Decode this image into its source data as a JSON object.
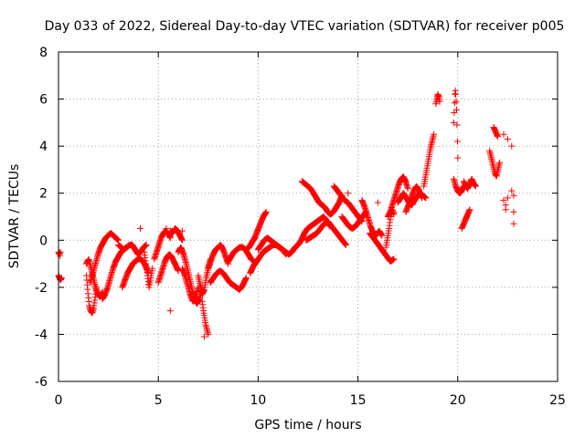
{
  "chart_data": {
    "type": "scatter",
    "title": "Day 033 of 2022, Sidereal Day-to-day VTEC variation (SDTVAR) for receiver p005",
    "xlabel": "GPS time / hours",
    "ylabel": "SDTVAR / TECUs",
    "xlim": [
      0,
      25
    ],
    "ylim": [
      -6,
      8
    ],
    "xticks": [
      0,
      5,
      10,
      15,
      20,
      25
    ],
    "yticks": [
      -6,
      -4,
      -2,
      0,
      2,
      4,
      6,
      8
    ],
    "xtick_labels": [
      "0",
      "5",
      "10",
      "15",
      "20",
      "25"
    ],
    "ytick_labels": [
      "-6",
      "-4",
      "-2",
      "0",
      "2",
      "4",
      "6",
      "8"
    ],
    "grid": true,
    "marker": "+",
    "color": "#ff0000",
    "series": [
      {
        "name": "SDTVAR",
        "segments": [
          {
            "t_start": 0.0,
            "t_end": 0.1,
            "y": [
              -0.5,
              -0.6,
              -0.5,
              -0.7,
              -0.5
            ]
          },
          {
            "t_start": 0.0,
            "t_end": 0.15,
            "y": [
              -1.5,
              -1.6,
              -1.7,
              -1.6
            ]
          },
          {
            "t_start": 1.4,
            "t_end": 1.9,
            "y": [
              -1.5,
              -2.2,
              -2.8,
              -3.0,
              -3.1,
              -2.9,
              -2.5,
              -2.0
            ]
          },
          {
            "t_start": 1.4,
            "t_end": 2.2,
            "y": [
              -1.0,
              -0.8,
              -1.2,
              -1.6,
              -2.0,
              -2.3,
              -2.4,
              -2.2
            ]
          },
          {
            "t_start": 1.6,
            "t_end": 3.0,
            "y": [
              -1.8,
              -1.4,
              -1.0,
              -0.6,
              -0.3,
              -0.1,
              0.1,
              0.2,
              0.3,
              0.2,
              0.1,
              0.0
            ]
          },
          {
            "t_start": 2.2,
            "t_end": 3.4,
            "y": [
              -2.5,
              -2.3,
              -2.0,
              -1.6,
              -1.2,
              -0.9,
              -0.7,
              -0.5,
              -0.4,
              -0.3
            ]
          },
          {
            "t_start": 3.0,
            "t_end": 4.4,
            "y": [
              -0.2,
              -0.3,
              -0.4,
              -0.3,
              -0.2,
              -0.2,
              -0.4,
              -0.6,
              -0.5,
              -0.3,
              -0.2
            ]
          },
          {
            "t_start": 3.2,
            "t_end": 4.5,
            "y": [
              -2.0,
              -1.7,
              -1.4,
              -1.2,
              -1.0,
              -0.9,
              -0.8,
              -0.8,
              -0.9,
              -1.1,
              -1.4
            ]
          },
          {
            "t_start": 4.3,
            "t_end": 4.7,
            "y": [
              -0.5,
              -1.0,
              -1.5,
              -2.0,
              -1.6,
              -1.2
            ]
          },
          {
            "t_start": 4.8,
            "t_end": 5.6,
            "y": [
              -0.8,
              -0.5,
              -0.2,
              0.1,
              0.3,
              0.4,
              0.3,
              0.1
            ]
          },
          {
            "t_start": 5.0,
            "t_end": 6.0,
            "y": [
              -1.8,
              -1.5,
              -1.2,
              -0.9,
              -0.7,
              -0.6,
              -0.7,
              -0.9,
              -1.1,
              -1.3
            ]
          },
          {
            "t_start": 5.6,
            "t_end": 6.2,
            "y": [
              0.4,
              0.3,
              0.5,
              0.4,
              0.2,
              0.0
            ]
          },
          {
            "t_start": 6.0,
            "t_end": 7.2,
            "y": [
              -0.5,
              -0.3,
              -0.6,
              -1.0,
              -1.5,
              -2.0,
              -2.5,
              -2.7,
              -2.5,
              -2.0
            ]
          },
          {
            "t_start": 6.2,
            "t_end": 7.0,
            "y": [
              -1.2,
              -1.5,
              -1.9,
              -2.3,
              -2.6,
              -2.4,
              -2.0
            ]
          },
          {
            "t_start": 7.0,
            "t_end": 7.6,
            "y": [
              -1.5,
              -1.9,
              -2.3,
              -2.1,
              -1.6,
              -1.2,
              -0.8
            ]
          },
          {
            "t_start": 7.2,
            "t_end": 7.5,
            "y": [
              -2.6,
              -3.0,
              -3.3,
              -3.6,
              -3.8,
              -4.0
            ]
          },
          {
            "t_start": 7.5,
            "t_end": 8.5,
            "y": [
              -1.2,
              -0.9,
              -0.6,
              -0.4,
              -0.3,
              -0.2,
              -0.4,
              -0.7,
              -1.0
            ]
          },
          {
            "t_start": 7.6,
            "t_end": 9.4,
            "y": [
              -1.8,
              -1.6,
              -1.4,
              -1.3,
              -1.4,
              -1.6,
              -1.8,
              -1.9,
              -2.0,
              -2.1,
              -1.9,
              -1.6
            ]
          },
          {
            "t_start": 8.5,
            "t_end": 9.8,
            "y": [
              -0.9,
              -0.7,
              -0.5,
              -0.4,
              -0.3,
              -0.3,
              -0.4,
              -0.6,
              -0.8,
              -0.9
            ]
          },
          {
            "t_start": 9.4,
            "t_end": 10.4,
            "y": [
              -0.4,
              -0.3,
              -0.1,
              0.1,
              0.4,
              0.7,
              1.0,
              1.2
            ]
          },
          {
            "t_start": 9.6,
            "t_end": 11.4,
            "y": [
              -1.4,
              -1.1,
              -0.9,
              -0.7,
              -0.5,
              -0.4,
              -0.3,
              -0.2,
              -0.2,
              -0.3,
              -0.4,
              -0.6
            ]
          },
          {
            "t_start": 10.0,
            "t_end": 12.0,
            "y": [
              -0.4,
              -0.2,
              0.0,
              0.1,
              0.0,
              -0.1,
              -0.2,
              -0.3,
              -0.4,
              -0.5,
              -0.6,
              -0.5,
              -0.3,
              -0.2
            ]
          },
          {
            "t_start": 12.0,
            "t_end": 13.6,
            "y": [
              -0.2,
              0.0,
              0.3,
              0.5,
              0.6,
              0.7,
              0.8,
              0.9,
              1.0,
              0.8,
              0.6
            ]
          },
          {
            "t_start": 12.2,
            "t_end": 13.2,
            "y": [
              2.5,
              2.4,
              2.3,
              2.2,
              2.0,
              1.8,
              1.6,
              1.5
            ]
          },
          {
            "t_start": 13.2,
            "t_end": 14.2,
            "y": [
              1.5,
              1.4,
              1.2,
              1.1,
              1.2,
              1.4,
              1.6,
              1.9
            ]
          },
          {
            "t_start": 12.4,
            "t_end": 14.4,
            "y": [
              0.0,
              0.1,
              0.2,
              0.3,
              0.5,
              0.7,
              0.8,
              0.6,
              0.4,
              0.2,
              0.0,
              -0.2
            ]
          },
          {
            "t_start": 13.8,
            "t_end": 15.2,
            "y": [
              2.3,
              2.1,
              1.9,
              1.7,
              1.6,
              1.4,
              1.2,
              1.0,
              0.8
            ]
          },
          {
            "t_start": 14.2,
            "t_end": 15.4,
            "y": [
              1.0,
              0.8,
              0.6,
              0.5,
              0.6,
              0.8,
              1.0,
              1.2
            ]
          },
          {
            "t_start": 15.2,
            "t_end": 16.2,
            "y": [
              1.7,
              1.4,
              1.0,
              0.6,
              0.3,
              0.2,
              0.4,
              0.2
            ]
          },
          {
            "t_start": 15.6,
            "t_end": 16.8,
            "y": [
              0.3,
              0.1,
              -0.1,
              -0.3,
              -0.5,
              -0.7,
              -0.9,
              -0.8
            ]
          },
          {
            "t_start": 16.4,
            "t_end": 16.8,
            "y": [
              -0.3,
              0.1,
              0.5,
              1.0,
              1.3,
              1.1
            ]
          },
          {
            "t_start": 16.5,
            "t_end": 17.5,
            "y": [
              1.0,
              1.2,
              1.5,
              1.8,
              2.1,
              2.4,
              2.6,
              2.7,
              2.5,
              2.2
            ]
          },
          {
            "t_start": 17.0,
            "t_end": 18.4,
            "y": [
              1.6,
              1.8,
              2.0,
              1.8,
              1.6,
              1.5,
              1.7,
              1.9,
              2.0,
              1.9,
              1.8
            ]
          },
          {
            "t_start": 17.4,
            "t_end": 18.2,
            "y": [
              1.2,
              1.5,
              1.8,
              2.1,
              2.3,
              2.1,
              1.8
            ]
          },
          {
            "t_start": 18.3,
            "t_end": 18.8,
            "y": [
              2.3,
              2.7,
              3.1,
              3.5,
              3.9,
              4.2,
              4.5
            ]
          },
          {
            "t_start": 18.9,
            "t_end": 19.1,
            "y": [
              5.8,
              6.0,
              6.2,
              6.1,
              5.9
            ]
          },
          {
            "t_start": 19.8,
            "t_end": 20.0,
            "y": [
              5.0,
              5.6,
              6.2,
              6.4,
              6.0,
              5.5,
              4.5,
              3.5
            ]
          },
          {
            "t_start": 19.8,
            "t_end": 20.3,
            "y": [
              2.6,
              2.3,
              2.1,
              2.0,
              2.1,
              2.3
            ]
          },
          {
            "t_start": 20.2,
            "t_end": 20.6,
            "y": [
              0.5,
              0.7,
              0.9,
              1.1,
              1.3
            ]
          },
          {
            "t_start": 20.3,
            "t_end": 20.9,
            "y": [
              2.5,
              2.3,
              2.2,
              2.4,
              2.6,
              2.4,
              2.3
            ]
          },
          {
            "t_start": 21.6,
            "t_end": 22.1,
            "y": [
              3.8,
              3.5,
              3.2,
              2.9,
              2.7,
              3.0,
              3.3
            ]
          },
          {
            "t_start": 21.8,
            "t_end": 22.0,
            "y": [
              4.8,
              4.6,
              4.4
            ]
          }
        ],
        "outliers": [
          [
            4.1,
            0.5
          ],
          [
            5.4,
            0.5
          ],
          [
            6.2,
            0.4
          ],
          [
            5.6,
            -3.0
          ],
          [
            7.3,
            -4.1
          ],
          [
            14.5,
            2.0
          ],
          [
            16.0,
            1.6
          ],
          [
            22.3,
            4.5
          ],
          [
            22.3,
            1.7
          ],
          [
            22.4,
            1.5
          ],
          [
            22.4,
            1.3
          ],
          [
            22.5,
            1.8
          ],
          [
            22.7,
            4.0
          ],
          [
            22.7,
            2.1
          ],
          [
            22.8,
            1.2
          ],
          [
            22.8,
            0.7
          ],
          [
            22.8,
            1.9
          ],
          [
            22.5,
            4.3
          ]
        ]
      }
    ]
  }
}
